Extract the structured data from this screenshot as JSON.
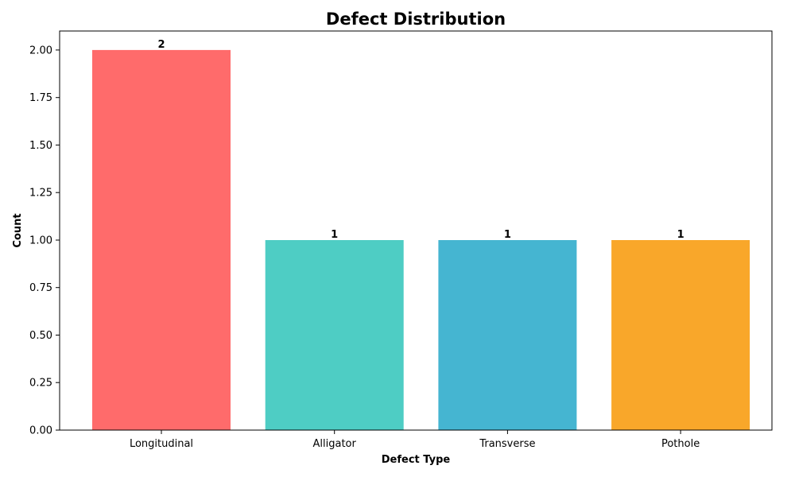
{
  "chart_data": {
    "type": "bar",
    "title": "Defect Distribution",
    "xlabel": "Defect Type",
    "ylabel": "Count",
    "categories": [
      "Longitudinal",
      "Alligator",
      "Transverse",
      "Pothole"
    ],
    "values": [
      2,
      1,
      1,
      1
    ],
    "colors": [
      "#ff6b6b",
      "#4ecdc4",
      "#45b5d1",
      "#f9a72a"
    ],
    "ylim": [
      0,
      2.1
    ],
    "yticks": [
      "0.00",
      "0.25",
      "0.50",
      "0.75",
      "1.00",
      "1.25",
      "1.50",
      "1.75",
      "2.00"
    ],
    "data_labels": [
      "2",
      "1",
      "1",
      "1"
    ],
    "grid": false,
    "legend": "none"
  }
}
